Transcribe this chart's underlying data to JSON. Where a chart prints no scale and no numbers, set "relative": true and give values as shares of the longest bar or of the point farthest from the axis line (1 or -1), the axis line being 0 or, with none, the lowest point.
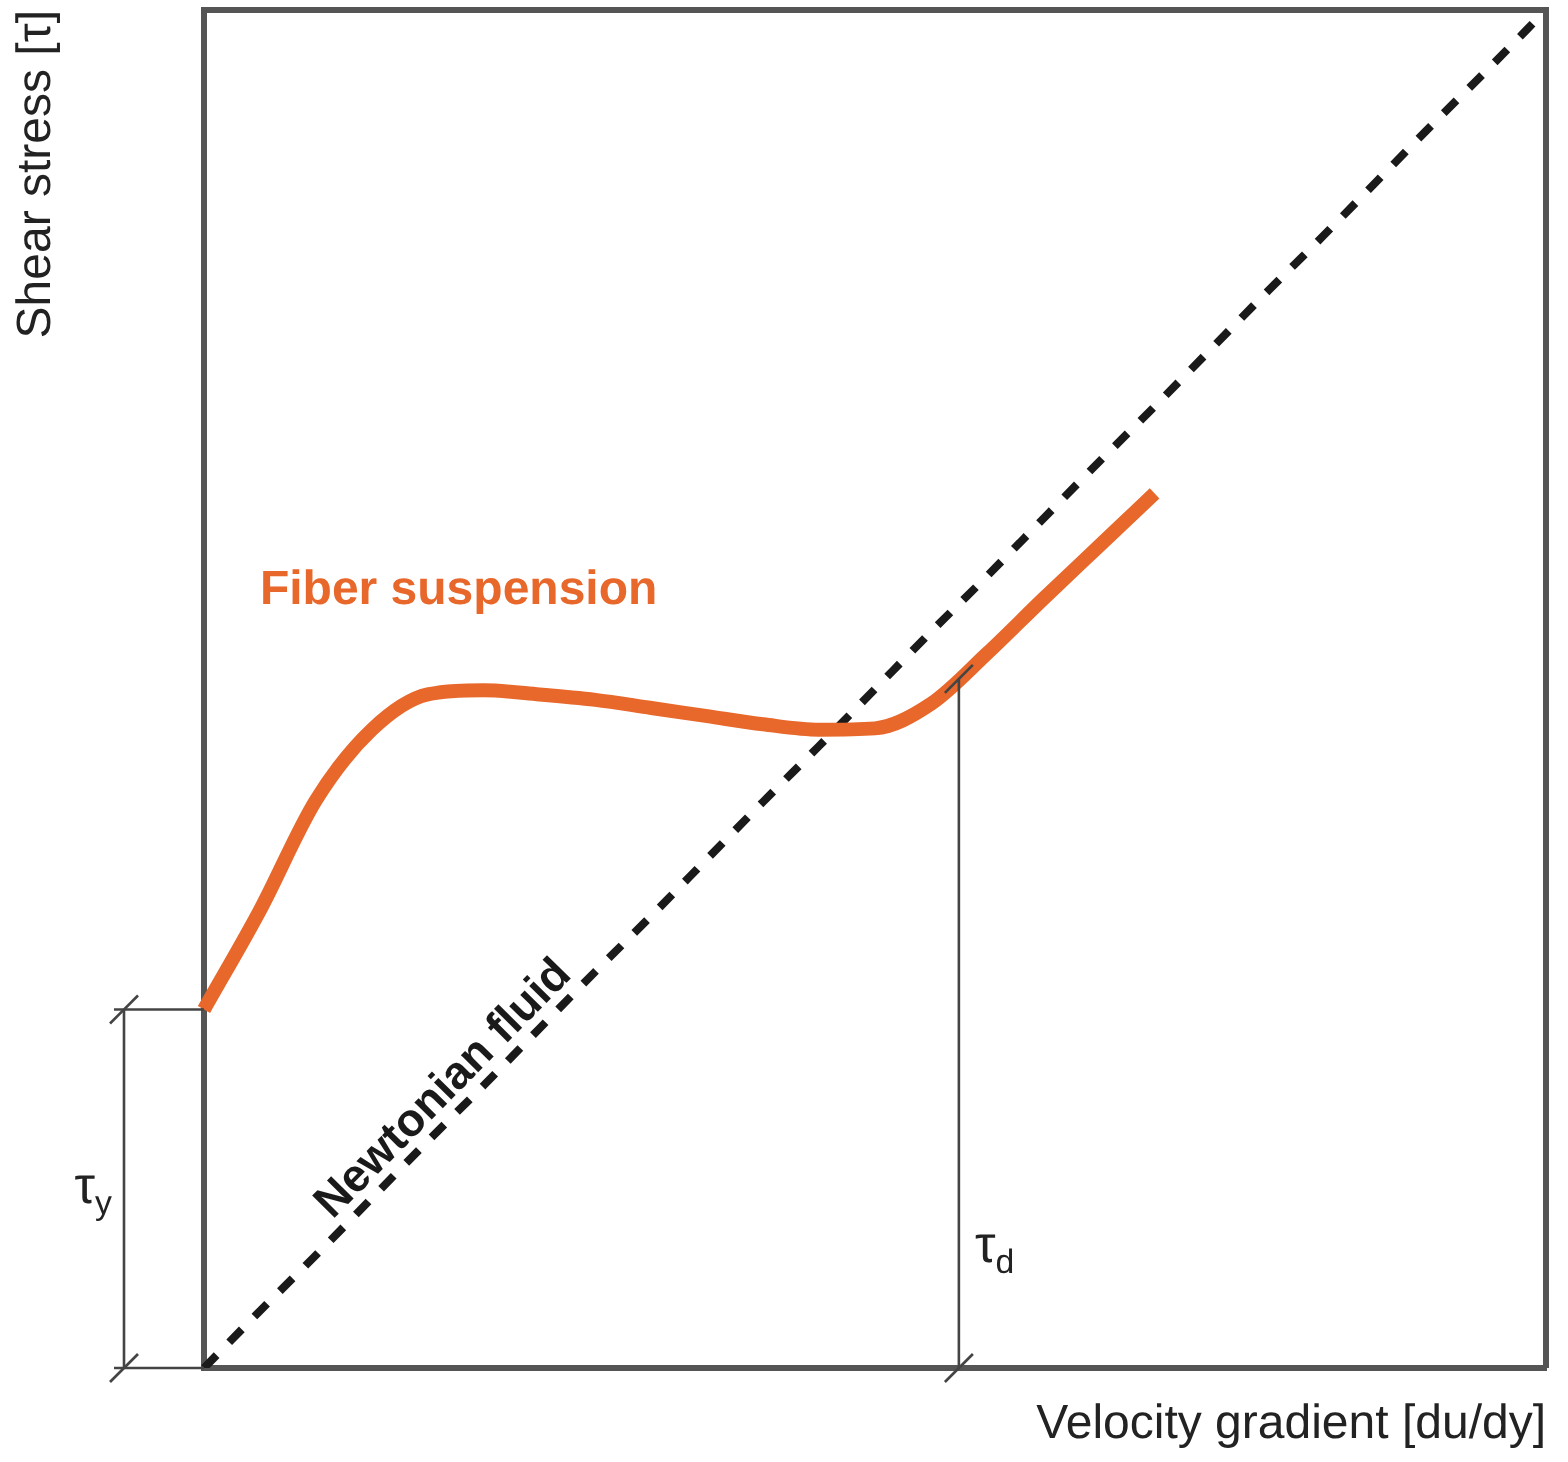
{
  "chart_data": {
    "type": "line",
    "relative": true,
    "xlabel": "Velocity gradient [du/dy]",
    "ylabel": "Shear stress [τ]",
    "categories": [
      null,
      null,
      null,
      null,
      null,
      null,
      null,
      null,
      null,
      null,
      null,
      null,
      null,
      null,
      null,
      null,
      null,
      null,
      null,
      null,
      null,
      null,
      null,
      null,
      null
    ],
    "series": [
      {
        "name": "Fiber suspension",
        "color": "#e8672a",
        "line_style": "solid",
        "values": [
          0.264,
          0.337,
          0.418,
          0.47,
          0.496,
          0.499,
          0.496,
          0.492,
          0.486,
          0.48,
          0.474,
          0.47,
          0.471,
          0.489,
          0.526,
          0.566,
          0.605,
          0.644,
          null,
          null,
          null,
          null,
          null,
          null,
          null
        ]
      },
      {
        "name": "Newtonian fluid",
        "color": "#1a1a1a",
        "line_style": "dashed",
        "values": [
          0,
          0.042,
          0.083,
          0.125,
          0.167,
          0.208,
          0.25,
          0.292,
          0.333,
          0.375,
          0.417,
          0.458,
          0.5,
          0.542,
          0.583,
          0.625,
          0.667,
          0.708,
          0.75,
          0.792,
          0.833,
          0.875,
          0.917,
          0.958,
          1
        ]
      }
    ],
    "annotations": [
      "τ$_{y}$",
      "τ$_{d}$"
    ],
    "legend": false,
    "marker": "none"
  }
}
